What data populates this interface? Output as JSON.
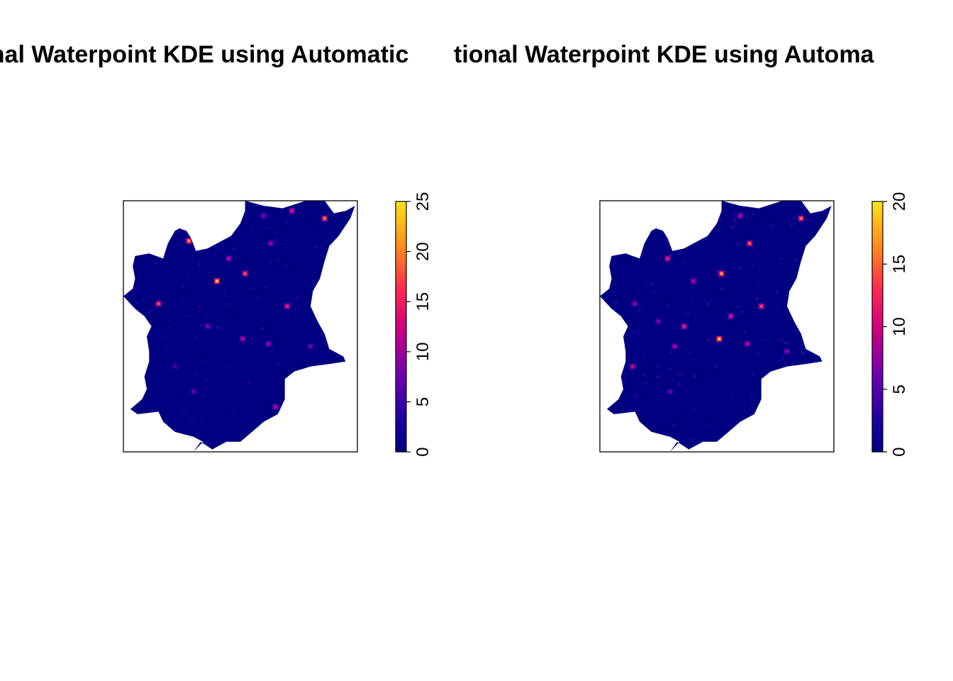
{
  "titles": {
    "left": "onal Waterpoint KDE using Automatic",
    "right": "tional Waterpoint KDE using Automa"
  },
  "colors": {
    "background": "#000080",
    "low": "#0000ff",
    "mid": "#e0006a",
    "high": "#ff8c1a",
    "peak": "#ffe000",
    "frame": "#000000"
  },
  "chart_data": [
    {
      "type": "heatmap",
      "title": "onal Waterpoint KDE using Automatic",
      "xlabel": "",
      "ylabel": "",
      "colorbar": {
        "range": [
          0,
          25
        ],
        "ticks": [
          "0",
          "5",
          "10",
          "15",
          "20",
          "25"
        ]
      },
      "hotspots": [
        {
          "u": 0.28,
          "v": 0.16,
          "value": 22
        },
        {
          "u": 0.4,
          "v": 0.32,
          "value": 25
        },
        {
          "u": 0.52,
          "v": 0.29,
          "value": 18
        },
        {
          "u": 0.45,
          "v": 0.23,
          "value": 12
        },
        {
          "u": 0.15,
          "v": 0.41,
          "value": 18
        },
        {
          "u": 0.7,
          "v": 0.42,
          "value": 15
        },
        {
          "u": 0.51,
          "v": 0.55,
          "value": 12
        },
        {
          "u": 0.86,
          "v": 0.07,
          "value": 20
        },
        {
          "u": 0.72,
          "v": 0.04,
          "value": 14
        },
        {
          "u": 0.63,
          "v": 0.17,
          "value": 10
        },
        {
          "u": 0.36,
          "v": 0.5,
          "value": 9
        },
        {
          "u": 0.62,
          "v": 0.57,
          "value": 10
        },
        {
          "u": 0.3,
          "v": 0.76,
          "value": 7
        },
        {
          "u": 0.65,
          "v": 0.82,
          "value": 12
        },
        {
          "u": 0.6,
          "v": 0.06,
          "value": 9
        },
        {
          "u": 0.22,
          "v": 0.66,
          "value": 6
        },
        {
          "u": 0.8,
          "v": 0.58,
          "value": 8
        }
      ]
    },
    {
      "type": "heatmap",
      "title": "tional Waterpoint KDE using Automa",
      "xlabel": "",
      "ylabel": "",
      "colorbar": {
        "range": [
          0,
          20
        ],
        "ticks": [
          "0",
          "5",
          "10",
          "15",
          "20"
        ]
      },
      "hotspots": [
        {
          "u": 0.29,
          "v": 0.23,
          "value": 12
        },
        {
          "u": 0.52,
          "v": 0.29,
          "value": 18
        },
        {
          "u": 0.64,
          "v": 0.17,
          "value": 15
        },
        {
          "u": 0.86,
          "v": 0.07,
          "value": 16
        },
        {
          "u": 0.69,
          "v": 0.42,
          "value": 14
        },
        {
          "u": 0.51,
          "v": 0.55,
          "value": 20
        },
        {
          "u": 0.36,
          "v": 0.5,
          "value": 12
        },
        {
          "u": 0.14,
          "v": 0.66,
          "value": 10
        },
        {
          "u": 0.15,
          "v": 0.41,
          "value": 8
        },
        {
          "u": 0.4,
          "v": 0.32,
          "value": 9
        },
        {
          "u": 0.56,
          "v": 0.46,
          "value": 11
        },
        {
          "u": 0.32,
          "v": 0.58,
          "value": 9
        },
        {
          "u": 0.63,
          "v": 0.57,
          "value": 10
        },
        {
          "u": 0.6,
          "v": 0.06,
          "value": 9
        },
        {
          "u": 0.3,
          "v": 0.76,
          "value": 6
        },
        {
          "u": 0.8,
          "v": 0.6,
          "value": 8
        },
        {
          "u": 0.25,
          "v": 0.48,
          "value": 7
        }
      ]
    }
  ]
}
